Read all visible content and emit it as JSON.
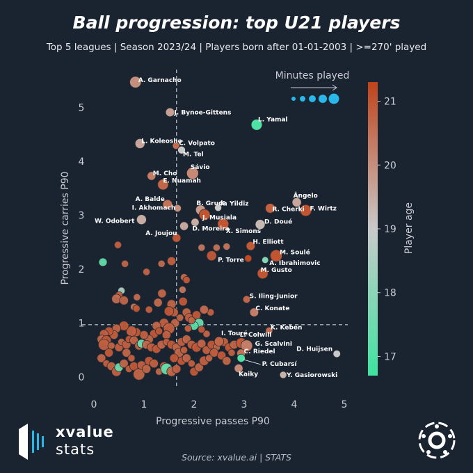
{
  "title": "Ball progression: top U21 players",
  "subtitle": "Top 5 leagues | Season 2023/24 | Players born after 01-01-2003 | >=270' played",
  "source": "Source: xvalue.ai | STATS",
  "brand": {
    "line1": "xvalue",
    "line2": "stats"
  },
  "colors": {
    "background": "#1a2330",
    "low_age": "#3de4a0",
    "mid_age": "#c9c9c9",
    "high_age": "#c0431a",
    "size_legend": "#29b6e8"
  },
  "chart_data": {
    "type": "scatter",
    "xlabel": "Progressive passes P90",
    "ylabel": "Progressive carries P90",
    "xlim": [
      -0.1,
      5.0
    ],
    "ylim": [
      -0.1,
      5.6
    ],
    "xticks": [
      "0",
      "1",
      "2",
      "3",
      "4",
      "5"
    ],
    "yticks": [
      "0",
      "1",
      "2",
      "3",
      "4",
      "5"
    ],
    "x_mean": 1.65,
    "y_mean": 0.97,
    "size_legend_title": "Minutes played",
    "colorbar_label": "Player age",
    "colorbar_ticks": [
      "17",
      "18",
      "19",
      "20",
      "21"
    ],
    "colorbar_range": [
      16.7,
      21.3
    ],
    "labeled_points": [
      {
        "name": "A. Garnacho",
        "x": 0.83,
        "y": 5.47,
        "age": 20.0,
        "size": 2500
      },
      {
        "name": "J. Bynoe-Gittens",
        "x": 1.52,
        "y": 4.91,
        "age": 19.7,
        "size": 1000
      },
      {
        "name": "L. Yamal",
        "x": 3.25,
        "y": 4.68,
        "age": 17.0,
        "size": 2200
      },
      {
        "name": "L. Koleosho",
        "x": 0.92,
        "y": 4.33,
        "age": 19.6,
        "size": 1500
      },
      {
        "name": "C. Volpato",
        "x": 1.64,
        "y": 4.29,
        "age": 20.6,
        "size": 400
      },
      {
        "name": "M. Tel",
        "x": 1.75,
        "y": 4.21,
        "age": 19.0,
        "size": 600
      },
      {
        "name": "M. Cho",
        "x": 1.15,
        "y": 3.73,
        "age": 20.3,
        "size": 900
      },
      {
        "name": "Sávio",
        "x": 1.97,
        "y": 3.78,
        "age": 20.1,
        "size": 2800
      },
      {
        "name": "E. Nuamah",
        "x": 1.38,
        "y": 3.57,
        "age": 20.7,
        "size": 2000
      },
      {
        "name": "A. Balde",
        "x": 1.47,
        "y": 3.2,
        "age": 20.5,
        "size": 1400
      },
      {
        "name": "I. Akhomach",
        "x": 1.67,
        "y": 3.13,
        "age": 20.0,
        "size": 500
      },
      {
        "name": "B. Gruda",
        "x": 2.13,
        "y": 3.1,
        "age": 19.8,
        "size": 1500
      },
      {
        "name": "K. Yildiz",
        "x": 2.48,
        "y": 3.14,
        "age": 19.0,
        "size": 400
      },
      {
        "name": "J. Musiala",
        "x": 2.21,
        "y": 3.01,
        "age": 21.0,
        "size": 2200
      },
      {
        "name": "W. Odobert",
        "x": 0.95,
        "y": 2.92,
        "age": 19.5,
        "size": 1500
      },
      {
        "name": "D. Moreira",
        "x": 2.02,
        "y": 2.87,
        "age": 19.5,
        "size": 700
      },
      {
        "name": "A. Joujou",
        "x": 1.8,
        "y": 2.8,
        "age": 19.6,
        "size": 900
      },
      {
        "name": "X. Simons",
        "x": 2.58,
        "y": 2.84,
        "age": 21.0,
        "size": 2300
      },
      {
        "name": "Ângelo",
        "x": 4.05,
        "y": 3.24,
        "age": 19.6,
        "size": 1200
      },
      {
        "name": "R. Cherki",
        "x": 3.52,
        "y": 3.13,
        "age": 20.8,
        "size": 1400
      },
      {
        "name": "F. Wirtz",
        "x": 4.23,
        "y": 3.09,
        "age": 21.0,
        "size": 2500
      },
      {
        "name": "D. Doué",
        "x": 3.32,
        "y": 2.83,
        "age": 19.3,
        "size": 1500
      },
      {
        "name": "H. Elliott",
        "x": 3.13,
        "y": 2.43,
        "age": 20.9,
        "size": 1000
      },
      {
        "name": "M. Soulé",
        "x": 3.64,
        "y": 2.25,
        "age": 21.0,
        "size": 2800
      },
      {
        "name": "P. Torre",
        "x": 3.08,
        "y": 2.2,
        "age": 21.2,
        "size": 400
      },
      {
        "name": "A. Ibrahimovic",
        "x": 3.42,
        "y": 2.17,
        "age": 17.8,
        "size": 300
      },
      {
        "name": "M. Gusto",
        "x": 3.37,
        "y": 1.92,
        "age": 21.0,
        "size": 2000
      },
      {
        "name": "S. Iling-Junior",
        "x": 3.05,
        "y": 1.44,
        "age": 20.7,
        "size": 500
      },
      {
        "name": "C. Konate",
        "x": 3.2,
        "y": 1.2,
        "age": 20.3,
        "size": 1000
      },
      {
        "name": "K. Keben",
        "x": 3.5,
        "y": 0.86,
        "age": 20.6,
        "size": 400
      },
      {
        "name": "I. Touré",
        "x": 2.5,
        "y": 0.66,
        "age": 20.7,
        "size": 1300
      },
      {
        "name": "L. Colwill",
        "x": 2.94,
        "y": 0.63,
        "age": 20.9,
        "size": 1800
      },
      {
        "name": "G. Scalvini",
        "x": 3.05,
        "y": 0.58,
        "age": 20.3,
        "size": 2600
      },
      {
        "name": "D. Huijsen",
        "x": 4.85,
        "y": 0.43,
        "age": 19.0,
        "size": 500
      },
      {
        "name": "C. Riedel",
        "x": 2.94,
        "y": 0.44,
        "age": 20.5,
        "size": 900
      },
      {
        "name": "P. Cubarsí",
        "x": 2.94,
        "y": 0.35,
        "age": 17.0,
        "size": 700
      },
      {
        "name": "Kaiky",
        "x": 2.89,
        "y": 0.16,
        "age": 20.1,
        "size": 900
      },
      {
        "name": "Y. Gasiorowski",
        "x": 3.78,
        "y": 0.04,
        "age": 19.4,
        "size": 400
      }
    ],
    "other_points": [
      [
        0.18,
        2.13,
        17.3,
        800
      ],
      [
        0.48,
        2.45,
        20.8,
        400
      ],
      [
        0.62,
        2.1,
        20.7,
        400
      ],
      [
        1.35,
        2.1,
        20.6,
        400
      ],
      [
        1.05,
        1.95,
        20.7,
        400
      ],
      [
        1.55,
        2.15,
        20.8,
        900
      ],
      [
        1.65,
        2.58,
        20.9,
        900
      ],
      [
        1.8,
        1.85,
        20.6,
        400
      ],
      [
        1.85,
        1.8,
        20.9,
        400
      ],
      [
        2.15,
        2.4,
        20.4,
        400
      ],
      [
        2.45,
        2.4,
        20.5,
        400
      ],
      [
        2.65,
        2.42,
        20.4,
        400
      ],
      [
        2.35,
        2.25,
        20.9,
        1500
      ],
      [
        1.77,
        1.62,
        20.4,
        400
      ],
      [
        0.55,
        1.6,
        18.5,
        400
      ],
      [
        0.5,
        1.52,
        20.8,
        400
      ],
      [
        0.8,
        1.3,
        20.4,
        400
      ],
      [
        0.86,
        1.48,
        20.6,
        400
      ],
      [
        1.36,
        1.55,
        20.7,
        900
      ],
      [
        1.78,
        1.4,
        20.9,
        900
      ],
      [
        2.33,
        1.2,
        20.8,
        400
      ],
      [
        0.45,
        1.45,
        20.6,
        1300
      ],
      [
        0.6,
        1.42,
        20.7,
        1000
      ],
      [
        0.85,
        1.27,
        20.9,
        400
      ],
      [
        1.1,
        1.25,
        20.8,
        400
      ],
      [
        1.28,
        1.38,
        20.6,
        900
      ],
      [
        1.55,
        1.35,
        20.7,
        1100
      ],
      [
        1.6,
        1.2,
        20.8,
        900
      ],
      [
        1.5,
        1.22,
        20.9,
        1300
      ],
      [
        1.85,
        1.2,
        20.7,
        900
      ],
      [
        1.9,
        1.1,
        20.8,
        900
      ],
      [
        2.05,
        1.15,
        20.9,
        900
      ],
      [
        2.1,
        1.0,
        17.5,
        1300
      ],
      [
        2.0,
        0.95,
        17.2,
        900
      ],
      [
        1.95,
        1.05,
        20.7,
        400
      ],
      [
        1.62,
        1.0,
        20.7,
        900
      ],
      [
        1.4,
        1.0,
        20.8,
        1300
      ],
      [
        1.25,
        0.95,
        20.7,
        900
      ],
      [
        1.5,
        0.9,
        20.8,
        2300
      ],
      [
        1.45,
        0.78,
        20.8,
        900
      ],
      [
        1.2,
        0.8,
        20.9,
        900
      ],
      [
        1.1,
        0.7,
        20.7,
        900
      ],
      [
        1.0,
        0.78,
        20.8,
        900
      ],
      [
        0.85,
        0.83,
        20.9,
        900
      ],
      [
        0.75,
        0.85,
        20.8,
        1800
      ],
      [
        0.6,
        0.95,
        20.9,
        1300
      ],
      [
        0.45,
        0.9,
        20.7,
        900
      ],
      [
        0.4,
        0.78,
        20.8,
        900
      ],
      [
        0.3,
        0.85,
        20.9,
        900
      ],
      [
        0.2,
        0.8,
        20.8,
        900
      ],
      [
        0.15,
        0.7,
        20.7,
        900
      ],
      [
        0.25,
        0.68,
        20.9,
        1300
      ],
      [
        0.2,
        0.6,
        20.8,
        2300
      ],
      [
        0.35,
        0.58,
        20.7,
        400
      ],
      [
        0.5,
        0.55,
        20.8,
        900
      ],
      [
        0.55,
        0.65,
        20.7,
        400
      ],
      [
        0.65,
        0.6,
        20.8,
        900
      ],
      [
        0.7,
        0.7,
        20.9,
        400
      ],
      [
        0.8,
        0.68,
        20.7,
        900
      ],
      [
        0.9,
        0.58,
        20.8,
        900
      ],
      [
        0.95,
        0.62,
        17.4,
        900
      ],
      [
        1.05,
        0.6,
        20.7,
        900
      ],
      [
        1.15,
        0.55,
        20.8,
        900
      ],
      [
        1.25,
        0.52,
        20.9,
        900
      ],
      [
        1.35,
        0.6,
        20.7,
        900
      ],
      [
        1.45,
        0.65,
        20.8,
        400
      ],
      [
        1.55,
        0.6,
        20.9,
        900
      ],
      [
        1.65,
        0.55,
        20.7,
        900
      ],
      [
        1.75,
        0.65,
        20.8,
        900
      ],
      [
        1.85,
        0.7,
        20.7,
        900
      ],
      [
        1.95,
        0.6,
        20.8,
        900
      ],
      [
        2.05,
        0.55,
        20.9,
        1300
      ],
      [
        2.15,
        0.62,
        20.7,
        900
      ],
      [
        2.25,
        0.5,
        20.8,
        900
      ],
      [
        2.35,
        0.6,
        20.9,
        900
      ],
      [
        2.45,
        0.55,
        20.7,
        400
      ],
      [
        2.6,
        0.65,
        20.8,
        900
      ],
      [
        2.7,
        0.55,
        20.9,
        900
      ],
      [
        2.8,
        0.6,
        20.7,
        900
      ],
      [
        0.15,
        0.35,
        20.7,
        900
      ],
      [
        0.25,
        0.25,
        20.8,
        400
      ],
      [
        0.35,
        0.2,
        20.7,
        900
      ],
      [
        0.45,
        0.1,
        20.8,
        1300
      ],
      [
        0.5,
        0.18,
        17.4,
        900
      ],
      [
        0.6,
        0.25,
        20.7,
        900
      ],
      [
        0.7,
        0.15,
        20.8,
        400
      ],
      [
        0.8,
        0.2,
        20.9,
        900
      ],
      [
        0.9,
        0.05,
        20.7,
        2500
      ],
      [
        0.95,
        0.22,
        20.8,
        900
      ],
      [
        1.05,
        0.15,
        20.7,
        900
      ],
      [
        1.1,
        0.3,
        20.9,
        900
      ],
      [
        1.2,
        0.25,
        20.8,
        900
      ],
      [
        1.3,
        0.1,
        20.7,
        400
      ],
      [
        1.4,
        0.2,
        20.8,
        900
      ],
      [
        1.45,
        0.15,
        17.4,
        2500
      ],
      [
        1.55,
        0.1,
        20.7,
        1300
      ],
      [
        1.65,
        0.15,
        20.8,
        900
      ],
      [
        1.75,
        0.3,
        20.9,
        900
      ],
      [
        1.85,
        0.35,
        20.7,
        900
      ],
      [
        1.95,
        0.25,
        20.8,
        400
      ],
      [
        2.0,
        0.1,
        20.9,
        900
      ],
      [
        2.1,
        0.18,
        20.7,
        900
      ],
      [
        2.2,
        0.3,
        20.8,
        1300
      ],
      [
        2.3,
        0.35,
        20.7,
        400
      ],
      [
        2.4,
        0.45,
        20.8,
        900
      ],
      [
        2.55,
        0.4,
        20.9,
        900
      ],
      [
        2.65,
        0.3,
        20.7,
        900
      ],
      [
        2.75,
        0.45,
        20.8,
        400
      ],
      [
        1.7,
        0.45,
        20.7,
        1300
      ],
      [
        1.6,
        0.35,
        20.9,
        900
      ],
      [
        1.8,
        0.5,
        20.8,
        400
      ],
      [
        0.65,
        0.45,
        20.7,
        900
      ],
      [
        0.75,
        0.35,
        20.8,
        400
      ],
      [
        0.3,
        0.45,
        20.9,
        900
      ],
      [
        2.2,
        1.25,
        20.6,
        900
      ],
      [
        1.72,
        1.1,
        20.7,
        400
      ],
      [
        1.88,
        0.9,
        20.8,
        400
      ],
      [
        1.3,
        0.85,
        20.9,
        400
      ],
      [
        2.25,
        0.8,
        20.7,
        400
      ],
      [
        2.15,
        0.88,
        20.9,
        400
      ]
    ]
  }
}
